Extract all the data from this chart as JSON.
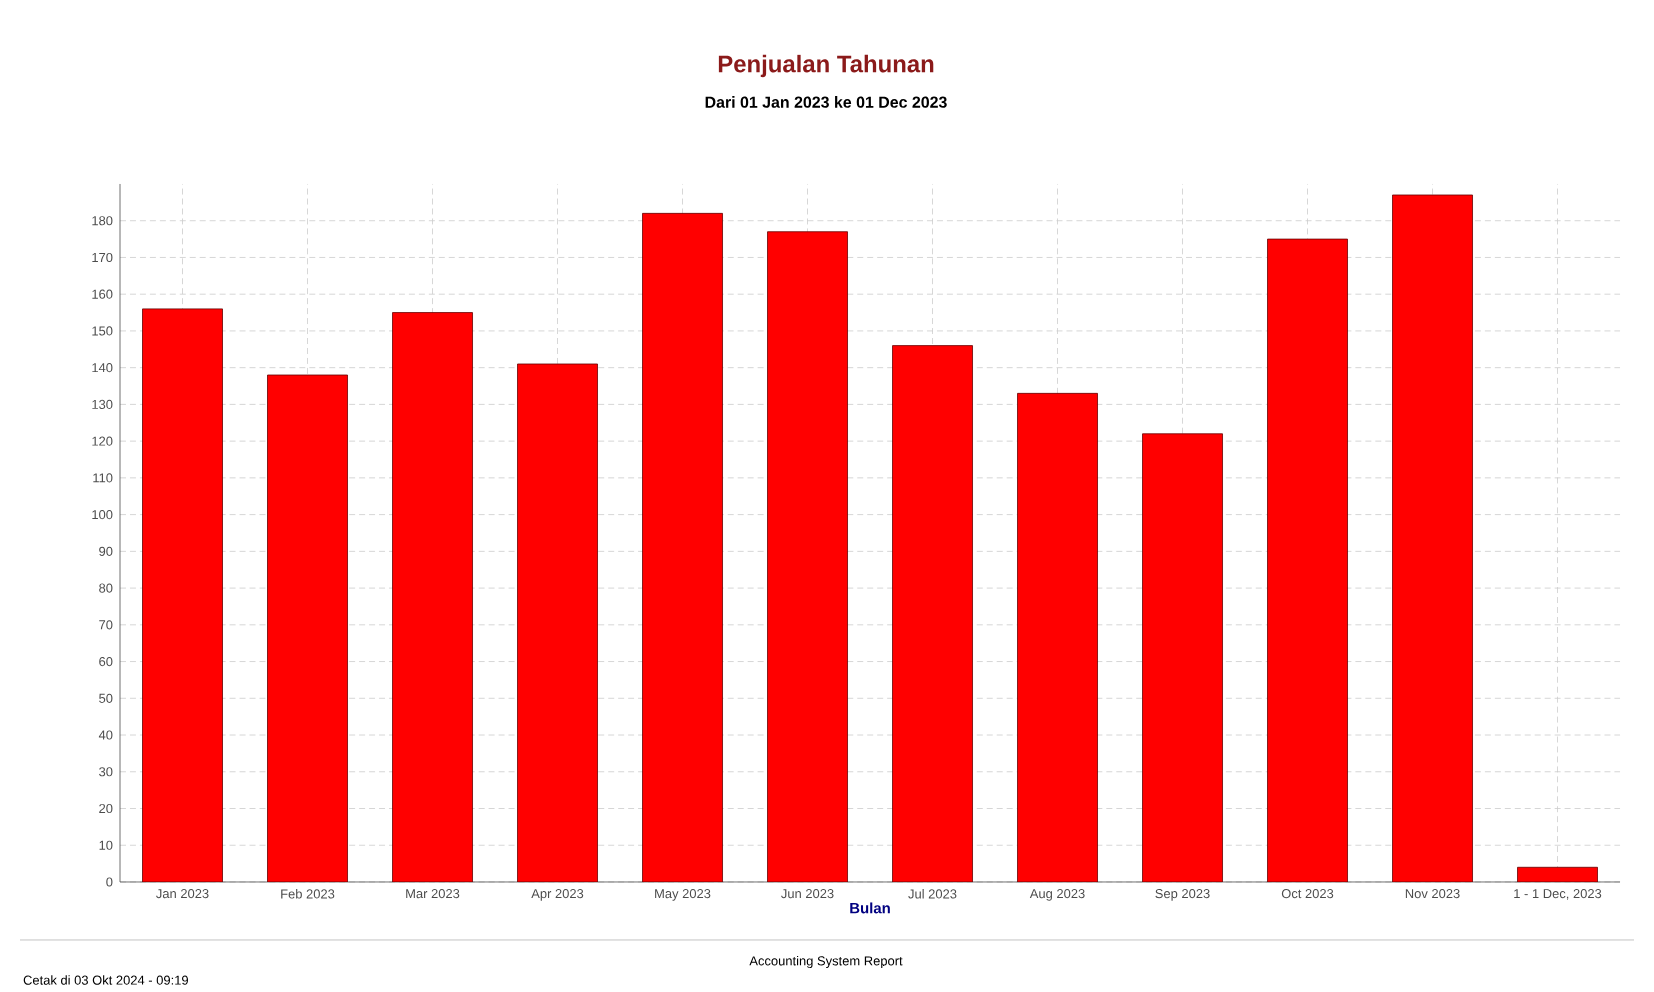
{
  "chart_data": {
    "type": "bar",
    "title": "Penjualan Tahunan",
    "subtitle": "Dari 01 Jan 2023 ke 01 Dec 2023",
    "xlabel": "Bulan",
    "categories": [
      "Jan 2023",
      "Feb 2023",
      "Mar 2023",
      "Apr 2023",
      "May 2023",
      "Jun 2023",
      "Jul 2023",
      "Aug 2023",
      "Sep 2023",
      "Oct 2023",
      "Nov 2023",
      "1 - 1 Dec, 2023"
    ],
    "values": [
      156,
      138,
      155,
      141,
      182,
      177,
      146,
      133,
      122,
      175,
      187,
      4
    ],
    "color": "#ff0000",
    "ylim": [
      0,
      190
    ],
    "yticks": [
      0,
      10,
      20,
      30,
      40,
      50,
      60,
      70,
      80,
      90,
      100,
      110,
      120,
      130,
      140,
      150,
      160,
      170,
      180
    ],
    "grid": true,
    "annotations": [
      "Accounting System Report",
      "Cetak di 03 Okt 2024 - 09:19"
    ]
  }
}
